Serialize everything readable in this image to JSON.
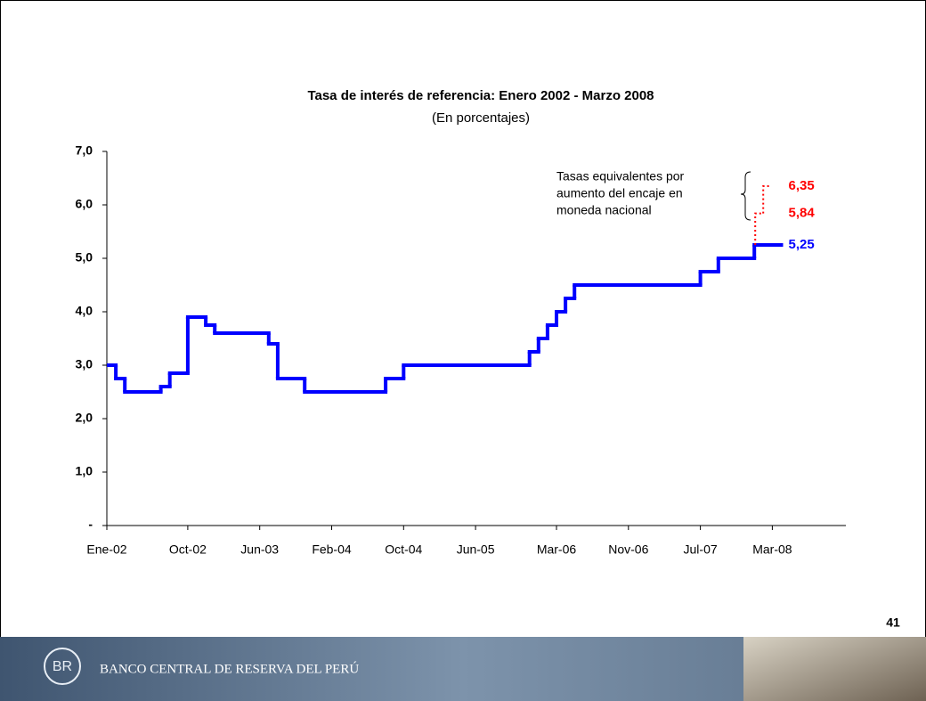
{
  "chart_data": {
    "type": "step-line",
    "title": "Tasa de interés de referencia: Enero 2002 - Marzo 2008",
    "subtitle": "(En porcentajes)",
    "categories": [
      "Ene-02",
      null,
      null,
      null,
      null,
      null,
      null,
      null,
      null,
      "Oct-02",
      null,
      null,
      null,
      null,
      null,
      null,
      null,
      "Jun-03",
      null,
      null,
      null,
      null,
      null,
      null,
      null,
      "Feb-04",
      null,
      null,
      null,
      null,
      null,
      null,
      null,
      "Oct-04",
      null,
      null,
      null,
      null,
      null,
      null,
      null,
      "Jun-05",
      null,
      null,
      null,
      null,
      null,
      null,
      null,
      null,
      "Mar-06",
      null,
      null,
      null,
      null,
      null,
      null,
      null,
      "Nov-06",
      null,
      null,
      null,
      null,
      null,
      null,
      null,
      "Jul-07",
      null,
      null,
      null,
      null,
      null,
      null,
      null,
      "Mar-08"
    ],
    "values": [
      3.0,
      2.75,
      2.5,
      2.5,
      2.5,
      2.5,
      2.6,
      2.85,
      2.85,
      3.9,
      3.9,
      3.75,
      3.6,
      3.6,
      3.6,
      3.6,
      3.6,
      3.6,
      3.4,
      2.75,
      2.75,
      2.75,
      2.5,
      2.5,
      2.5,
      2.5,
      2.5,
      2.5,
      2.5,
      2.5,
      2.5,
      2.75,
      2.75,
      3.0,
      3.0,
      3.0,
      3.0,
      3.0,
      3.0,
      3.0,
      3.0,
      3.0,
      3.0,
      3.0,
      3.0,
      3.0,
      3.0,
      3.25,
      3.5,
      3.75,
      4.0,
      4.25,
      4.5,
      4.5,
      4.5,
      4.5,
      4.5,
      4.5,
      4.5,
      4.5,
      4.5,
      4.5,
      4.5,
      4.5,
      4.5,
      4.5,
      4.75,
      4.75,
      5.0,
      5.0,
      5.0,
      5.0,
      5.25,
      5.25,
      5.25
    ],
    "color": "#0000ff",
    "end_label": "5,25",
    "ylim": [
      0,
      7
    ],
    "yticks": [
      {
        "value": 0,
        "label": "-"
      },
      {
        "value": 1,
        "label": "1,0"
      },
      {
        "value": 2,
        "label": "2,0"
      },
      {
        "value": 3,
        "label": "3,0"
      },
      {
        "value": 4,
        "label": "4,0"
      },
      {
        "value": 5,
        "label": "5,0"
      },
      {
        "value": 6,
        "label": "6,0"
      },
      {
        "value": 7,
        "label": "7,0"
      }
    ],
    "annotation": {
      "lines": [
        "Tasas equivalentes por",
        "aumento del encaje en",
        "moneda nacional"
      ],
      "color": "#ff0000",
      "equivalent_rates": [
        {
          "value": 5.84,
          "label": "5,84"
        },
        {
          "value": 6.35,
          "label": "6,35"
        }
      ]
    }
  },
  "slide": {
    "page_number": 41,
    "footer": "BANCO CENTRAL DE RESERVA DEL PERÚ"
  }
}
